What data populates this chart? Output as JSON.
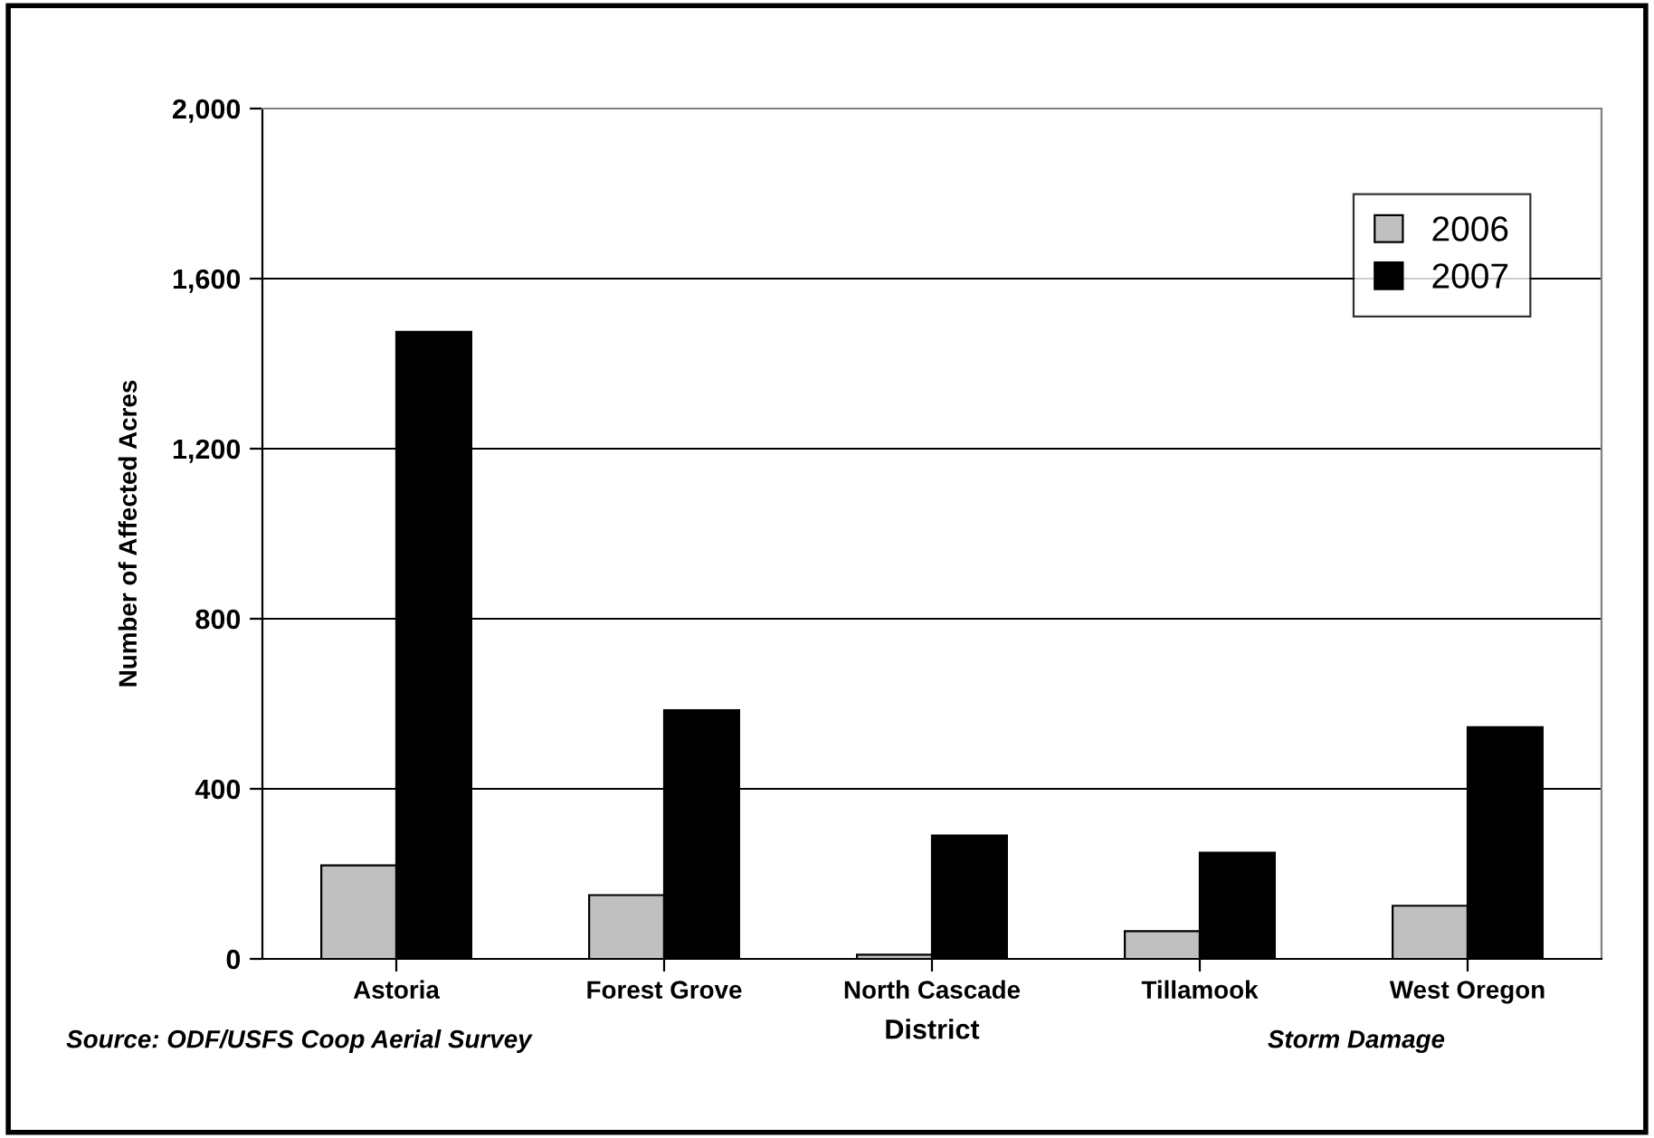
{
  "chart_data": {
    "type": "bar",
    "xlabel": "District",
    "ylabel": "Number of Affected Acres",
    "categories": [
      "Astoria",
      "Forest Grove",
      "North Cascade",
      "Tillamook",
      "West Oregon"
    ],
    "series": [
      {
        "name": "2006",
        "color": "#c0c0c0",
        "values": [
          220,
          150,
          10,
          65,
          125
        ]
      },
      {
        "name": "2007",
        "color": "#000000",
        "values": [
          1475,
          585,
          290,
          250,
          545
        ]
      }
    ],
    "ylim": [
      0,
      2000
    ],
    "yticks": [
      0,
      {
        "value": 400,
        "label": "400"
      },
      {
        "value": 800,
        "label": "800"
      },
      {
        "value": 1200,
        "label": "1,200"
      },
      {
        "value": 1600,
        "label": "1,600"
      },
      {
        "value": 2000,
        "label": "2,000"
      }
    ],
    "grid": "y",
    "legend": "top right",
    "annotations": [
      "Source: ODF/USFS Coop Aerial Survey",
      "Storm Damage"
    ]
  }
}
